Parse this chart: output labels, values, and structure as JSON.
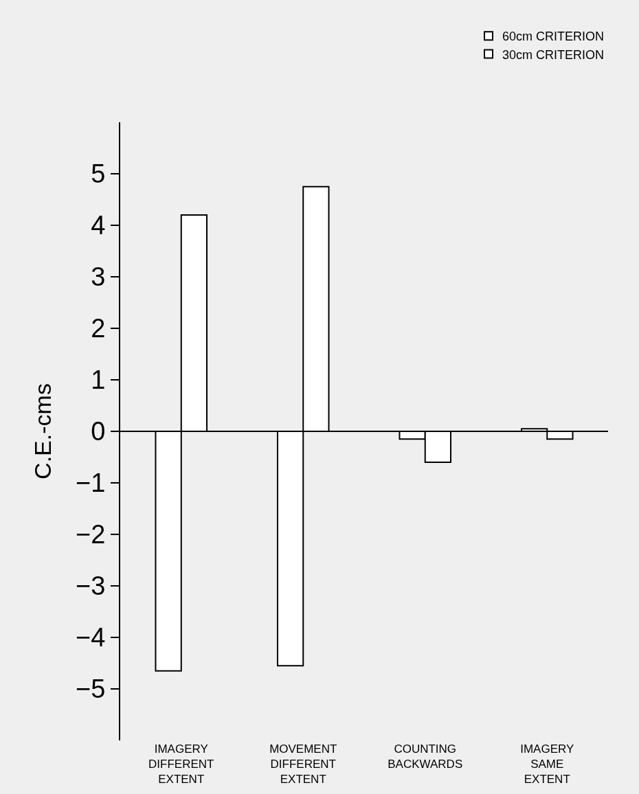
{
  "chart_data": {
    "type": "bar",
    "ylabel": "C.E.-cms",
    "categories": [
      "IMAGERY DIFFERENT EXTENT",
      "MOVEMENT DIFFERENT EXTENT",
      "COUNTING BACKWARDS",
      "IMAGERY SAME EXTENT"
    ],
    "series": [
      {
        "name": "60cm CRITERION",
        "color": "#ffffff",
        "values": [
          -4.65,
          -4.55,
          -0.15,
          0.05
        ]
      },
      {
        "name": "30cm CRITERION",
        "color": "#ffffff",
        "values": [
          4.2,
          4.75,
          -0.6,
          -0.15
        ]
      }
    ],
    "ylim": [
      -6,
      6
    ],
    "yticks": [
      {
        "value": -5,
        "label": "−5"
      },
      {
        "value": -4,
        "label": "−4"
      },
      {
        "value": -3,
        "label": "−3"
      },
      {
        "value": -2,
        "label": "−2"
      },
      {
        "value": -1,
        "label": "−1"
      },
      0,
      1,
      2,
      3,
      4,
      5
    ],
    "ref_lines": [
      {
        "axis": "y",
        "value": 0,
        "color": "#000000",
        "line_style": "solid"
      }
    ],
    "grid": false,
    "legend": "top right"
  }
}
